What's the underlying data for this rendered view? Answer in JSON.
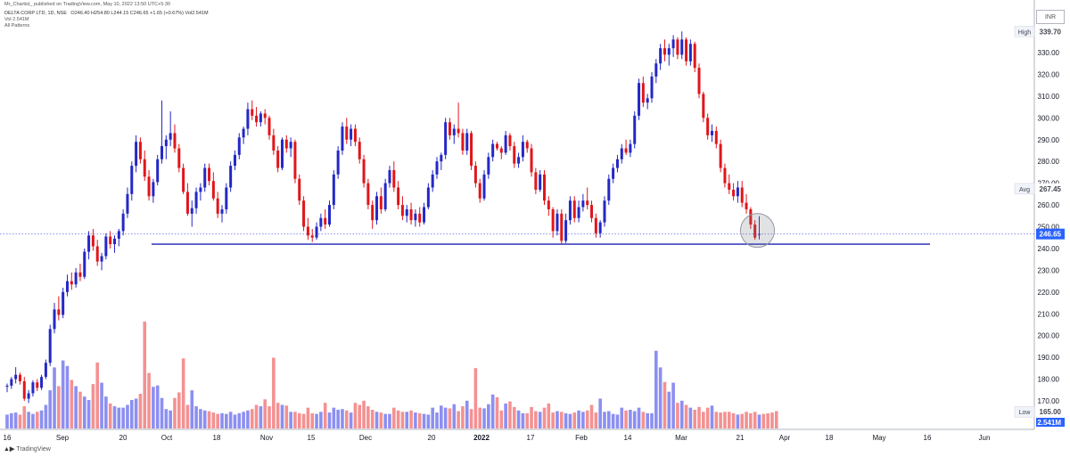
{
  "header": {
    "published": "Mr_Chartist_ published on TradingView.com, May 10, 2022 13:50 UTC+5:30",
    "symbol": "DELTA CORP LTD, 1D, NSE",
    "ohlc": "O246.40 H254.80 L244.15 C246.65 +1.65 (+0.67%) Vol2.541M",
    "volume": "Vol  2.541M",
    "patterns": "All Patterns"
  },
  "currency": "INR",
  "footer": {
    "brand": "TradingView"
  },
  "colors": {
    "up": "#2428c6",
    "down": "#e0161b",
    "volume_up": "#8c8ff0",
    "volume_down": "#f49192",
    "support": "#1b22b8"
  },
  "chart_data": {
    "type": "candlestick",
    "title": "",
    "ylim": [
      160,
      345
    ],
    "y_ticks": [
      170,
      180,
      190,
      200,
      210,
      220,
      230,
      240,
      250,
      260,
      270,
      280,
      290,
      300,
      310,
      320,
      330
    ],
    "x_ticks": [
      "16",
      "Sep",
      "20",
      "Oct",
      "18",
      "Nov",
      "15",
      "Dec",
      "20",
      "2022",
      "17",
      "Feb",
      "14",
      "Mar",
      "21",
      "Apr",
      "18",
      "May",
      "16",
      "Jun"
    ],
    "price_labels": {
      "high": "339.70",
      "high_label": "High",
      "avg": "267.45",
      "avg_label": "Avg",
      "last": "246.65",
      "low": "165.00",
      "low_label": "Low",
      "volume": "2.541M"
    },
    "support_level": 242,
    "grid": false,
    "candles": [
      [
        176.5,
        178.0,
        174.0,
        177.0
      ],
      [
        177.0,
        181.0,
        175.5,
        180.0
      ],
      [
        180.0,
        185.5,
        178.0,
        182.0
      ],
      [
        182.0,
        183.0,
        177.5,
        179.0
      ],
      [
        179.0,
        181.0,
        170.0,
        171.0
      ],
      [
        171.0,
        175.0,
        169.0,
        173.5
      ],
      [
        173.5,
        179.5,
        172.0,
        178.5
      ],
      [
        178.5,
        180.0,
        174.5,
        176.0
      ],
      [
        176.0,
        182.0,
        175.0,
        181.0
      ],
      [
        181.0,
        189.0,
        180.0,
        187.5
      ],
      [
        187.5,
        205.0,
        186.0,
        203.0
      ],
      [
        203.0,
        215.0,
        201.0,
        212.0
      ],
      [
        212.0,
        218.0,
        207.0,
        209.5
      ],
      [
        209.5,
        222.0,
        208.0,
        220.0
      ],
      [
        220.0,
        228.0,
        218.0,
        225.0
      ],
      [
        225.0,
        229.0,
        221.0,
        223.5
      ],
      [
        223.5,
        231.0,
        222.0,
        229.0
      ],
      [
        229.0,
        233.0,
        225.0,
        227.0
      ],
      [
        227.0,
        240.0,
        226.0,
        238.5
      ],
      [
        238.5,
        248.0,
        235.0,
        246.0
      ],
      [
        246.0,
        249.0,
        239.0,
        241.0
      ],
      [
        241.0,
        244.0,
        232.0,
        234.0
      ],
      [
        234.0,
        238.0,
        230.0,
        236.5
      ],
      [
        236.5,
        247.0,
        235.0,
        245.5
      ],
      [
        245.5,
        248.0,
        240.0,
        242.0
      ],
      [
        242.0,
        246.0,
        238.0,
        244.5
      ],
      [
        244.5,
        249.0,
        241.0,
        248.0
      ],
      [
        248.0,
        258.0,
        246.0,
        256.0
      ],
      [
        256.0,
        268.0,
        254.0,
        265.0
      ],
      [
        265.0,
        280.0,
        262.0,
        278.0
      ],
      [
        278.0,
        292.0,
        275.0,
        289.0
      ],
      [
        289.0,
        291.0,
        279.0,
        281.0
      ],
      [
        281.0,
        285.0,
        271.0,
        273.0
      ],
      [
        273.0,
        276.0,
        262.0,
        264.0
      ],
      [
        264.0,
        272.0,
        261.0,
        270.5
      ],
      [
        270.5,
        283.0,
        269.0,
        281.0
      ],
      [
        281.0,
        308.0,
        279.0,
        287.0
      ],
      [
        287.0,
        292.0,
        281.0,
        290.0
      ],
      [
        290.0,
        303.0,
        287.0,
        293.0
      ],
      [
        293.0,
        297.0,
        284.0,
        286.0
      ],
      [
        286.0,
        288.0,
        275.0,
        277.0
      ],
      [
        277.0,
        279.0,
        265.0,
        266.0
      ],
      [
        266.0,
        270.0,
        255.0,
        256.0
      ],
      [
        256.0,
        262.0,
        250.0,
        258.5
      ],
      [
        258.5,
        268.0,
        256.0,
        266.0
      ],
      [
        266.0,
        270.0,
        262.0,
        268.0
      ],
      [
        268.0,
        279.0,
        266.0,
        277.0
      ],
      [
        277.0,
        279.0,
        269.0,
        271.0
      ],
      [
        271.0,
        275.0,
        262.0,
        263.0
      ],
      [
        263.0,
        266.0,
        254.0,
        256.0
      ],
      [
        256.0,
        260.0,
        252.0,
        258.0
      ],
      [
        258.0,
        270.0,
        256.0,
        268.0
      ],
      [
        268.0,
        280.0,
        266.0,
        278.0
      ],
      [
        278.0,
        285.0,
        276.0,
        283.0
      ],
      [
        283.0,
        293.0,
        281.0,
        291.0
      ],
      [
        291.0,
        296.0,
        288.0,
        295.0
      ],
      [
        295.0,
        307.0,
        292.0,
        304.0
      ],
      [
        304.0,
        308.0,
        299.0,
        301.0
      ],
      [
        301.0,
        305.0,
        296.0,
        298.0
      ],
      [
        298.0,
        303.0,
        296.0,
        302.0
      ],
      [
        302.0,
        304.0,
        297.0,
        300.0
      ],
      [
        300.0,
        301.0,
        290.0,
        292.0
      ],
      [
        292.0,
        295.0,
        283.0,
        285.0
      ],
      [
        285.0,
        287.0,
        275.0,
        277.0
      ],
      [
        277.0,
        291.0,
        276.0,
        290.0
      ],
      [
        290.0,
        292.0,
        284.0,
        286.0
      ],
      [
        286.0,
        291.0,
        282.0,
        289.0
      ],
      [
        289.0,
        290.0,
        270.0,
        272.0
      ],
      [
        272.0,
        274.0,
        260.0,
        262.0
      ],
      [
        262.0,
        264.0,
        248.0,
        250.0
      ],
      [
        250.0,
        254.0,
        244.0,
        246.0
      ],
      [
        246.0,
        249.0,
        243.0,
        245.0
      ],
      [
        245.0,
        252.0,
        244.0,
        250.0
      ],
      [
        250.0,
        256.0,
        248.0,
        254.0
      ],
      [
        254.0,
        258.0,
        249.0,
        251.0
      ],
      [
        251.0,
        262.0,
        250.0,
        260.0
      ],
      [
        260.0,
        276.0,
        258.0,
        274.0
      ],
      [
        274.0,
        287.0,
        272.0,
        285.0
      ],
      [
        285.0,
        298.0,
        283.0,
        296.0
      ],
      [
        296.0,
        300.0,
        288.0,
        290.0
      ],
      [
        290.0,
        297.0,
        287.0,
        295.0
      ],
      [
        295.0,
        297.0,
        287.0,
        289.0
      ],
      [
        289.0,
        291.0,
        279.0,
        281.0
      ],
      [
        281.0,
        283.0,
        268.0,
        270.0
      ],
      [
        270.0,
        272.0,
        258.0,
        260.0
      ],
      [
        260.0,
        262.0,
        249.0,
        253.0
      ],
      [
        253.0,
        266.0,
        251.0,
        264.0
      ],
      [
        264.0,
        268.0,
        256.0,
        258.0
      ],
      [
        258.0,
        272.0,
        257.0,
        270.0
      ],
      [
        270.0,
        278.0,
        268.0,
        276.0
      ],
      [
        276.0,
        280.0,
        266.0,
        268.0
      ],
      [
        268.0,
        271.0,
        258.0,
        260.0
      ],
      [
        260.0,
        264.0,
        253.0,
        255.0
      ],
      [
        255.0,
        260.0,
        252.0,
        258.0
      ],
      [
        258.0,
        261.0,
        251.0,
        253.0
      ],
      [
        253.0,
        258.0,
        250.0,
        256.0
      ],
      [
        256.0,
        259.0,
        250.0,
        252.0
      ],
      [
        252.0,
        261.0,
        251.0,
        259.0
      ],
      [
        259.0,
        270.0,
        258.0,
        268.0
      ],
      [
        268.0,
        276.0,
        266.0,
        274.0
      ],
      [
        274.0,
        282.0,
        272.0,
        280.0
      ],
      [
        280.0,
        284.0,
        276.0,
        283.0
      ],
      [
        283.0,
        300.0,
        281.0,
        298.0
      ],
      [
        298.0,
        300.0,
        290.0,
        292.0
      ],
      [
        292.0,
        297.0,
        288.0,
        295.0
      ],
      [
        295.0,
        307.0,
        291.0,
        293.0
      ],
      [
        293.0,
        295.0,
        283.0,
        285.0
      ],
      [
        285.0,
        295.0,
        283.0,
        293.0
      ],
      [
        293.0,
        294.0,
        276.0,
        278.0
      ],
      [
        278.0,
        280.0,
        268.0,
        270.0
      ],
      [
        270.0,
        272.0,
        261.0,
        263.0
      ],
      [
        263.0,
        276.0,
        262.0,
        274.0
      ],
      [
        274.0,
        284.0,
        272.0,
        282.0
      ],
      [
        282.0,
        290.0,
        280.0,
        288.0
      ],
      [
        288.0,
        289.0,
        285.0,
        286.0
      ],
      [
        286.0,
        287.0,
        281.0,
        284.0
      ],
      [
        284.0,
        294.0,
        283.0,
        292.0
      ],
      [
        292.0,
        293.0,
        285.0,
        287.0
      ],
      [
        287.0,
        289.0,
        277.0,
        279.0
      ],
      [
        279.0,
        284.0,
        277.0,
        282.0
      ],
      [
        282.0,
        292.0,
        280.0,
        289.0
      ],
      [
        289.0,
        290.0,
        284.0,
        286.0
      ],
      [
        286.0,
        288.0,
        273.0,
        275.0
      ],
      [
        275.0,
        277.0,
        265.0,
        267.0
      ],
      [
        267.0,
        276.0,
        266.0,
        274.0
      ],
      [
        274.0,
        276.0,
        260.0,
        262.0
      ],
      [
        262.0,
        264.0,
        255.0,
        258.0
      ],
      [
        258.0,
        259.0,
        245.0,
        248.0
      ],
      [
        248.0,
        258.0,
        246.0,
        256.0
      ],
      [
        256.0,
        258.0,
        242.0,
        243.5
      ],
      [
        243.5,
        256.0,
        242.5,
        253.0
      ],
      [
        253.0,
        264.0,
        251.0,
        262.0
      ],
      [
        262.0,
        264.0,
        252.0,
        254.0
      ],
      [
        254.0,
        262.0,
        252.0,
        259.0
      ],
      [
        259.0,
        265.0,
        257.0,
        262.0
      ],
      [
        262.0,
        268.0,
        258.0,
        260.0
      ],
      [
        260.0,
        262.0,
        252.0,
        254.0
      ],
      [
        254.0,
        256.0,
        245.0,
        247.0
      ],
      [
        247.0,
        253.0,
        245.0,
        252.0
      ],
      [
        252.0,
        264.0,
        250.0,
        262.0
      ],
      [
        262.0,
        274.0,
        260.0,
        272.0
      ],
      [
        272.0,
        279.0,
        270.0,
        277.0
      ],
      [
        277.0,
        283.0,
        275.0,
        281.0
      ],
      [
        281.0,
        288.0,
        279.0,
        286.0
      ],
      [
        286.0,
        290.0,
        283.0,
        284.0
      ],
      [
        284.0,
        290.0,
        282.0,
        288.0
      ],
      [
        288.0,
        303.0,
        286.0,
        301.0
      ],
      [
        301.0,
        318.0,
        299.0,
        316.0
      ],
      [
        316.0,
        319.0,
        305.0,
        307.0
      ],
      [
        307.0,
        311.0,
        304.0,
        309.0
      ],
      [
        309.0,
        321.0,
        307.0,
        319.0
      ],
      [
        319.0,
        327.0,
        316.0,
        325.0
      ],
      [
        325.0,
        334.0,
        322.0,
        332.0
      ],
      [
        332.0,
        336.0,
        326.0,
        329.0
      ],
      [
        329.0,
        334.0,
        324.0,
        332.0
      ],
      [
        332.0,
        338.0,
        328.0,
        336.0
      ],
      [
        336.0,
        337.0,
        327.0,
        329.0
      ],
      [
        329.0,
        339.7,
        327.0,
        336.0
      ],
      [
        336.0,
        337.0,
        324.0,
        326.0
      ],
      [
        326.0,
        336.0,
        324.0,
        334.0
      ],
      [
        334.0,
        335.0,
        321.0,
        323.0
      ],
      [
        323.0,
        325.0,
        309.0,
        311.0
      ],
      [
        311.0,
        312.0,
        298.0,
        300.0
      ],
      [
        300.0,
        302.0,
        290.0,
        292.0
      ],
      [
        292.0,
        297.0,
        289.0,
        294.0
      ],
      [
        294.0,
        296.0,
        286.0,
        288.0
      ],
      [
        288.0,
        290.0,
        275.0,
        277.0
      ],
      [
        277.0,
        279.0,
        268.0,
        270.0
      ],
      [
        270.0,
        274.0,
        265.0,
        267.0
      ],
      [
        267.0,
        270.0,
        262.0,
        264.0
      ],
      [
        264.0,
        271.0,
        261.0,
        268.0
      ],
      [
        268.0,
        271.0,
        259.0,
        261.0
      ],
      [
        261.0,
        265.0,
        256.0,
        258.0
      ],
      [
        258.0,
        259.0,
        249.0,
        251.0
      ],
      [
        251.0,
        253.0,
        244.0,
        245.0
      ],
      [
        246.4,
        254.8,
        244.15,
        246.65
      ]
    ],
    "volume": [
      2.0,
      2.2,
      2.3,
      2.0,
      3.2,
      2.4,
      2.1,
      2.4,
      2.6,
      3.4,
      5.5,
      8.8,
      6.1,
      9.8,
      9.0,
      7.0,
      6.1,
      5.3,
      4.6,
      4.1,
      6.4,
      9.5,
      6.6,
      4.6,
      3.6,
      3.2,
      3.0,
      3.0,
      3.4,
      4.1,
      4.3,
      5.0,
      15.4,
      8.0,
      6.0,
      6.2,
      4.4,
      2.8,
      2.6,
      4.4,
      5.2,
      10.1,
      3.4,
      5.5,
      3.2,
      2.8,
      2.6,
      2.5,
      2.3,
      2.1,
      2.2,
      2.1,
      2.4,
      2.0,
      2.2,
      2.4,
      2.6,
      2.8,
      3.4,
      3.2,
      4.2,
      3.2,
      10.2,
      3.7,
      3.4,
      3.3,
      2.4,
      2.4,
      2.2,
      2.1,
      3.0,
      2.2,
      2.1,
      2.4,
      3.7,
      2.3,
      3.0,
      2.7,
      2.8,
      2.6,
      2.3,
      3.7,
      3.4,
      4.0,
      3.2,
      2.7,
      2.4,
      2.3,
      2.1,
      2.1,
      3.0,
      2.6,
      2.4,
      2.4,
      2.6,
      2.3,
      2.2,
      2.1,
      2.0,
      3.0,
      2.3,
      3.3,
      3.0,
      2.9,
      3.5,
      2.5,
      3.2,
      4.0,
      2.8,
      8.7,
      3.0,
      2.9,
      3.5,
      4.9,
      4.5,
      2.6,
      3.6,
      3.9,
      3.1,
      2.6,
      2.2,
      2.2,
      3.1,
      2.5,
      2.4,
      3.0,
      3.6,
      2.3,
      2.5,
      2.4,
      2.2,
      2.1,
      2.3,
      2.6,
      2.4,
      2.6,
      3.4,
      2.3,
      4.3,
      2.4,
      2.5,
      2.1,
      2.0,
      3.0,
      2.6,
      2.7,
      2.5,
      3.0,
      2.4,
      2.2,
      2.2,
      11.2,
      8.8,
      6.7,
      5.3,
      6.6,
      3.7,
      4.0,
      3.4,
      3.0,
      2.7,
      3.1,
      2.4,
      3.0,
      3.3,
      2.4,
      2.3,
      2.4,
      2.4,
      2.2,
      2.0,
      2.1,
      2.4,
      2.2,
      2.4,
      2.0,
      2.1,
      2.2,
      2.3,
      2.5
    ]
  }
}
